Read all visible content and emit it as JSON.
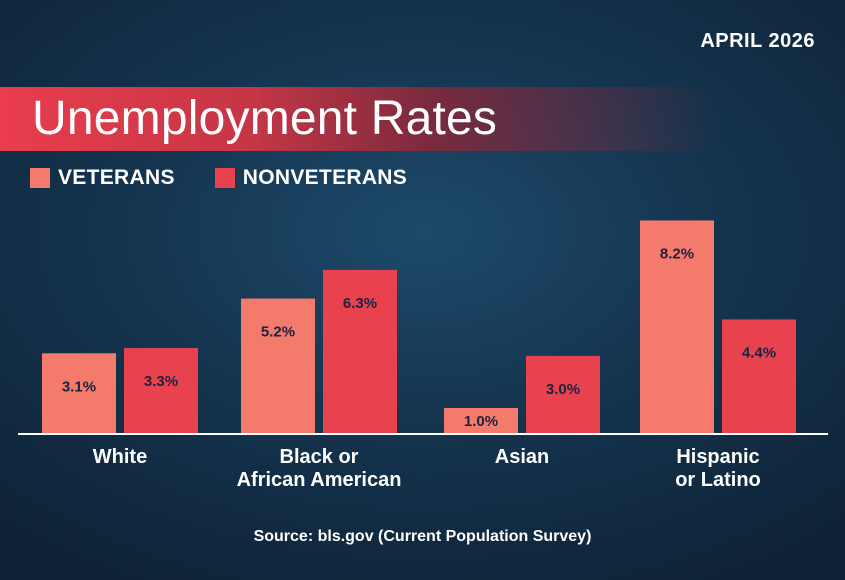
{
  "header": {
    "date": "APRIL 2026",
    "title": "Unemployment Rates"
  },
  "colors": {
    "veterans": "#f47a6c",
    "nonveterans": "#e8424f",
    "axis": "#ffffff",
    "label_text": "#1a2440"
  },
  "chart_data": {
    "type": "bar",
    "title": "Unemployment Rates",
    "categories": [
      [
        "White"
      ],
      [
        "Black or",
        "African American"
      ],
      [
        "Asian"
      ],
      [
        "Hispanic",
        "or Latino"
      ]
    ],
    "series": [
      {
        "name": "VETERANS",
        "values": [
          3.1,
          5.2,
          1.0,
          8.2
        ],
        "labels": [
          "3.1%",
          "5.2%",
          "1.0%",
          "8.2%"
        ]
      },
      {
        "name": "NONVETERANS",
        "values": [
          3.3,
          6.3,
          3.0,
          4.4
        ],
        "labels": [
          "3.3%",
          "6.3%",
          "3.0%",
          "4.4%"
        ]
      }
    ],
    "ylim": [
      0,
      9.6
    ],
    "grid": false,
    "legend": "top-left"
  },
  "footer": {
    "source": "Source: bls.gov (Current Population Survey)"
  }
}
